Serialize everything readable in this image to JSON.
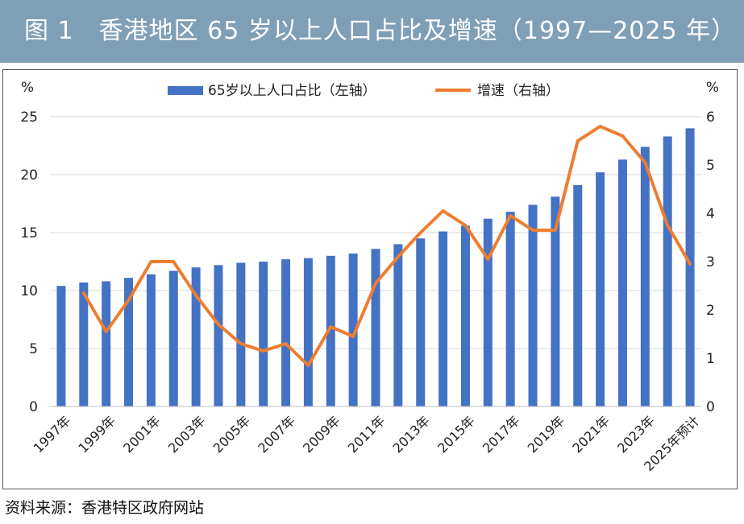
{
  "title": "图 1　香港地区 65 岁以上人口占比及增速（1997—2025 年）",
  "source": "资料来源：香港特区政府网站",
  "chart_data": {
    "type": "bar+line",
    "left_axis": {
      "unit": "%",
      "ticks": [
        0,
        5,
        10,
        15,
        20,
        25
      ],
      "ylim": [
        0,
        25
      ]
    },
    "right_axis": {
      "unit": "%",
      "ticks": [
        0,
        1,
        2,
        3,
        4,
        5,
        6
      ],
      "ylim": [
        0,
        6
      ]
    },
    "categories": [
      "1997年",
      "1998年",
      "1999年",
      "2000年",
      "2001年",
      "2002年",
      "2003年",
      "2004年",
      "2005年",
      "2006年",
      "2007年",
      "2008年",
      "2009年",
      "2010年",
      "2011年",
      "2012年",
      "2013年",
      "2014年",
      "2015年",
      "2016年",
      "2017年",
      "2018年",
      "2019年",
      "2020年",
      "2021年",
      "2022年",
      "2023年",
      "2024年",
      "2025年预计"
    ],
    "x_tick_labels": [
      "1997年",
      "",
      "1999年",
      "",
      "2001年",
      "",
      "2003年",
      "",
      "2005年",
      "",
      "2007年",
      "",
      "2009年",
      "",
      "2011年",
      "",
      "2013年",
      "",
      "2015年",
      "",
      "2017年",
      "",
      "2019年",
      "",
      "2021年",
      "",
      "2023年",
      "",
      "2025年预计"
    ],
    "series": [
      {
        "name": "65岁以上人口占比（左轴）",
        "type": "bar",
        "axis": "left",
        "color": "#4472c4",
        "values": [
          10.4,
          10.7,
          10.8,
          11.1,
          11.4,
          11.7,
          12.0,
          12.2,
          12.4,
          12.5,
          12.7,
          12.8,
          13.0,
          13.2,
          13.6,
          14.0,
          14.5,
          15.1,
          15.6,
          16.2,
          16.8,
          17.4,
          18.1,
          19.1,
          20.2,
          21.3,
          22.4,
          23.3,
          24.0
        ]
      },
      {
        "name": "增速（右轴）",
        "type": "line",
        "axis": "right",
        "color": "#ed7d31",
        "values": [
          null,
          2.35,
          1.55,
          2.2,
          3.0,
          3.0,
          2.3,
          1.7,
          1.3,
          1.15,
          1.3,
          0.85,
          1.65,
          1.45,
          2.55,
          3.1,
          3.6,
          4.05,
          3.75,
          3.05,
          3.95,
          3.65,
          3.65,
          5.5,
          5.8,
          5.6,
          5.05,
          3.75,
          2.95
        ]
      }
    ]
  }
}
